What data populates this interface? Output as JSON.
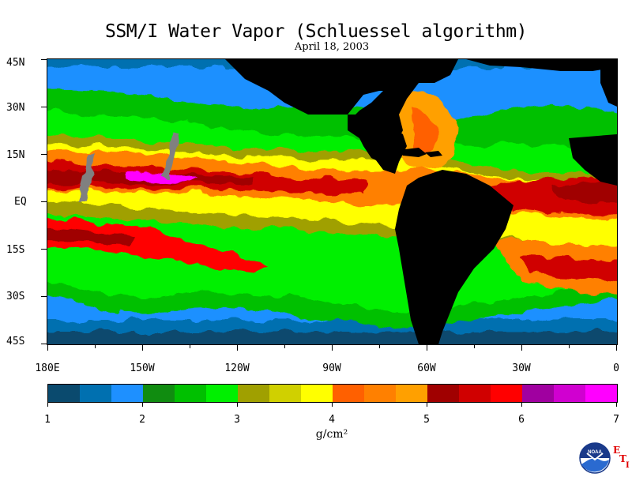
{
  "title": "SSM/I Water Vapor (Schluessel algorithm)",
  "subtitle": "April 18, 2003",
  "lat_labels": [
    "45N",
    "30N",
    "15N",
    "EQ",
    "15S",
    "30S",
    "45S"
  ],
  "lon_labels": [
    "180E",
    "150W",
    "120W",
    "90W",
    "60W",
    "30W",
    "0"
  ],
  "colorbar": {
    "colors": [
      "#0a4a6e",
      "#0070b0",
      "#1e90ff",
      "#108c10",
      "#00c000",
      "#00f000",
      "#a0a000",
      "#d0d000",
      "#ffff00",
      "#ff6000",
      "#ff8000",
      "#ffa000",
      "#a00000",
      "#d00000",
      "#ff0000",
      "#a000a0",
      "#d000d0",
      "#ff00ff"
    ],
    "tick_labels": [
      "1",
      "2",
      "3",
      "4",
      "5",
      "6",
      "7"
    ],
    "unit_label": "g/cm²"
  },
  "logo": {
    "text": "NOAA",
    "letter_e": "E",
    "letter_t": "T",
    "letter_i": "I"
  }
}
